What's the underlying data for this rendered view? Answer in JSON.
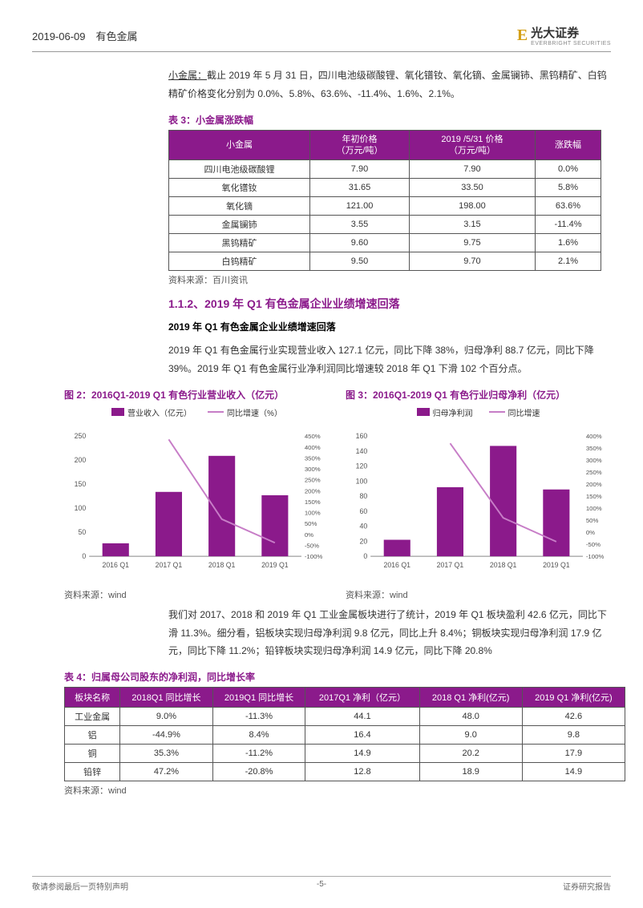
{
  "header": {
    "date": "2019-06-09",
    "category": "有色金属",
    "brand": "光大证券",
    "brand_en": "EVERBRIGHT SECURITIES"
  },
  "intro": {
    "label": "小金属：",
    "text": "截止 2019 年 5 月 31 日，四川电池级碳酸锂、氧化镨钕、氧化镝、金属镧铈、黑钨精矿、白钨精矿价格变化分别为 0.0%、5.8%、63.6%、-11.4%、1.6%、2.1%。"
  },
  "table3": {
    "caption": "表 3：小金属涨跌幅",
    "headers": [
      "小金属",
      "年初价格\n（万元/吨）",
      "2019 /5/31 价格\n（万元/吨）",
      "涨跌幅"
    ],
    "rows": [
      [
        "四川电池级碳酸锂",
        "7.90",
        "7.90",
        "0.0%"
      ],
      [
        "氧化镨钕",
        "31.65",
        "33.50",
        "5.8%"
      ],
      [
        "氧化镝",
        "121.00",
        "198.00",
        "63.6%"
      ],
      [
        "金属镧铈",
        "3.55",
        "3.15",
        "-11.4%"
      ],
      [
        "黑钨精矿",
        "9.60",
        "9.75",
        "1.6%"
      ],
      [
        "白钨精矿",
        "9.50",
        "9.70",
        "2.1%"
      ]
    ],
    "source": "资料来源：百川资讯"
  },
  "section": {
    "h2": "1.1.2、2019 年 Q1 有色金属企业业绩增速回落",
    "h3": "2019 年 Q1 有色金属企业业绩增速回落",
    "para1": "2019 年 Q1 有色金属行业实现营业收入 127.1 亿元，同比下降 38%，归母净利 88.7 亿元，同比下降 39%。2019 年 Q1 有色金属行业净利润同比增速较 2018 年 Q1 下滑 102 个百分点。"
  },
  "chart2": {
    "title": "图 2：2016Q1-2019 Q1 有色行业营业收入（亿元）",
    "legend": {
      "bar": "营业收入（亿元）",
      "line": "同比增速（%）"
    },
    "categories": [
      "2016 Q1",
      "2017 Q1",
      "2018 Q1",
      "2019 Q1"
    ],
    "bar_values": [
      27,
      134,
      209,
      127
    ],
    "line_values": [
      null,
      435,
      70,
      -38
    ],
    "y1_ticks": [
      0,
      50,
      100,
      150,
      200,
      250
    ],
    "y2_ticks": [
      -100,
      -50,
      0,
      50,
      100,
      150,
      200,
      250,
      300,
      350,
      400,
      450
    ],
    "bar_color": "#8b1a8b",
    "line_color": "#c77dc7",
    "grid_color": "#cccccc",
    "source": "资料来源：wind"
  },
  "chart3": {
    "title": "图 3：2016Q1-2019 Q1 有色行业归母净利（亿元）",
    "legend": {
      "bar": "归母净利润",
      "line": "同比增速"
    },
    "categories": [
      "2016 Q1",
      "2017 Q1",
      "2018 Q1",
      "2019 Q1"
    ],
    "bar_values": [
      22,
      92,
      147,
      89
    ],
    "line_values": [
      null,
      370,
      60,
      -39
    ],
    "y1_ticks": [
      0,
      20,
      40,
      60,
      80,
      100,
      120,
      140,
      160
    ],
    "y2_ticks": [
      -100,
      -50,
      0,
      50,
      100,
      150,
      200,
      250,
      300,
      350,
      400
    ],
    "bar_color": "#8b1a8b",
    "line_color": "#c77dc7",
    "grid_color": "#cccccc",
    "source": "资料来源：wind"
  },
  "para2": "我们对 2017、2018 和 2019 年 Q1 工业金属板块进行了统计，2019 年 Q1 板块盈利 42.6 亿元，同比下滑 11.3%。细分看，铝板块实现归母净利润 9.8 亿元，同比上升 8.4%；铜板块实现归母净利润 17.9 亿元，同比下降 11.2%；铅锌板块实现归母净利润 14.9 亿元，同比下降 20.8%",
  "table4": {
    "caption": "表 4：归属母公司股东的净利润，同比增长率",
    "headers": [
      "板块名称",
      "2018Q1 同比增长",
      "2019Q1 同比增长",
      "2017Q1 净利（亿元）",
      "2018 Q1 净利(亿元)",
      "2019 Q1 净利(亿元)"
    ],
    "rows": [
      [
        "工业金属",
        "9.0%",
        "-11.3%",
        "44.1",
        "48.0",
        "42.6"
      ],
      [
        "铝",
        "-44.9%",
        "8.4%",
        "16.4",
        "9.0",
        "9.8"
      ],
      [
        "铜",
        "35.3%",
        "-11.2%",
        "14.9",
        "20.2",
        "17.9"
      ],
      [
        "铅锌",
        "47.2%",
        "-20.8%",
        "12.8",
        "18.9",
        "14.9"
      ]
    ],
    "source": "资料来源：wind"
  },
  "footer": {
    "left": "敬请参阅最后一页特别声明",
    "center": "-5-",
    "right": "证券研究报告"
  },
  "colors": {
    "purple": "#8b1a8b",
    "gold": "#d4a017"
  }
}
